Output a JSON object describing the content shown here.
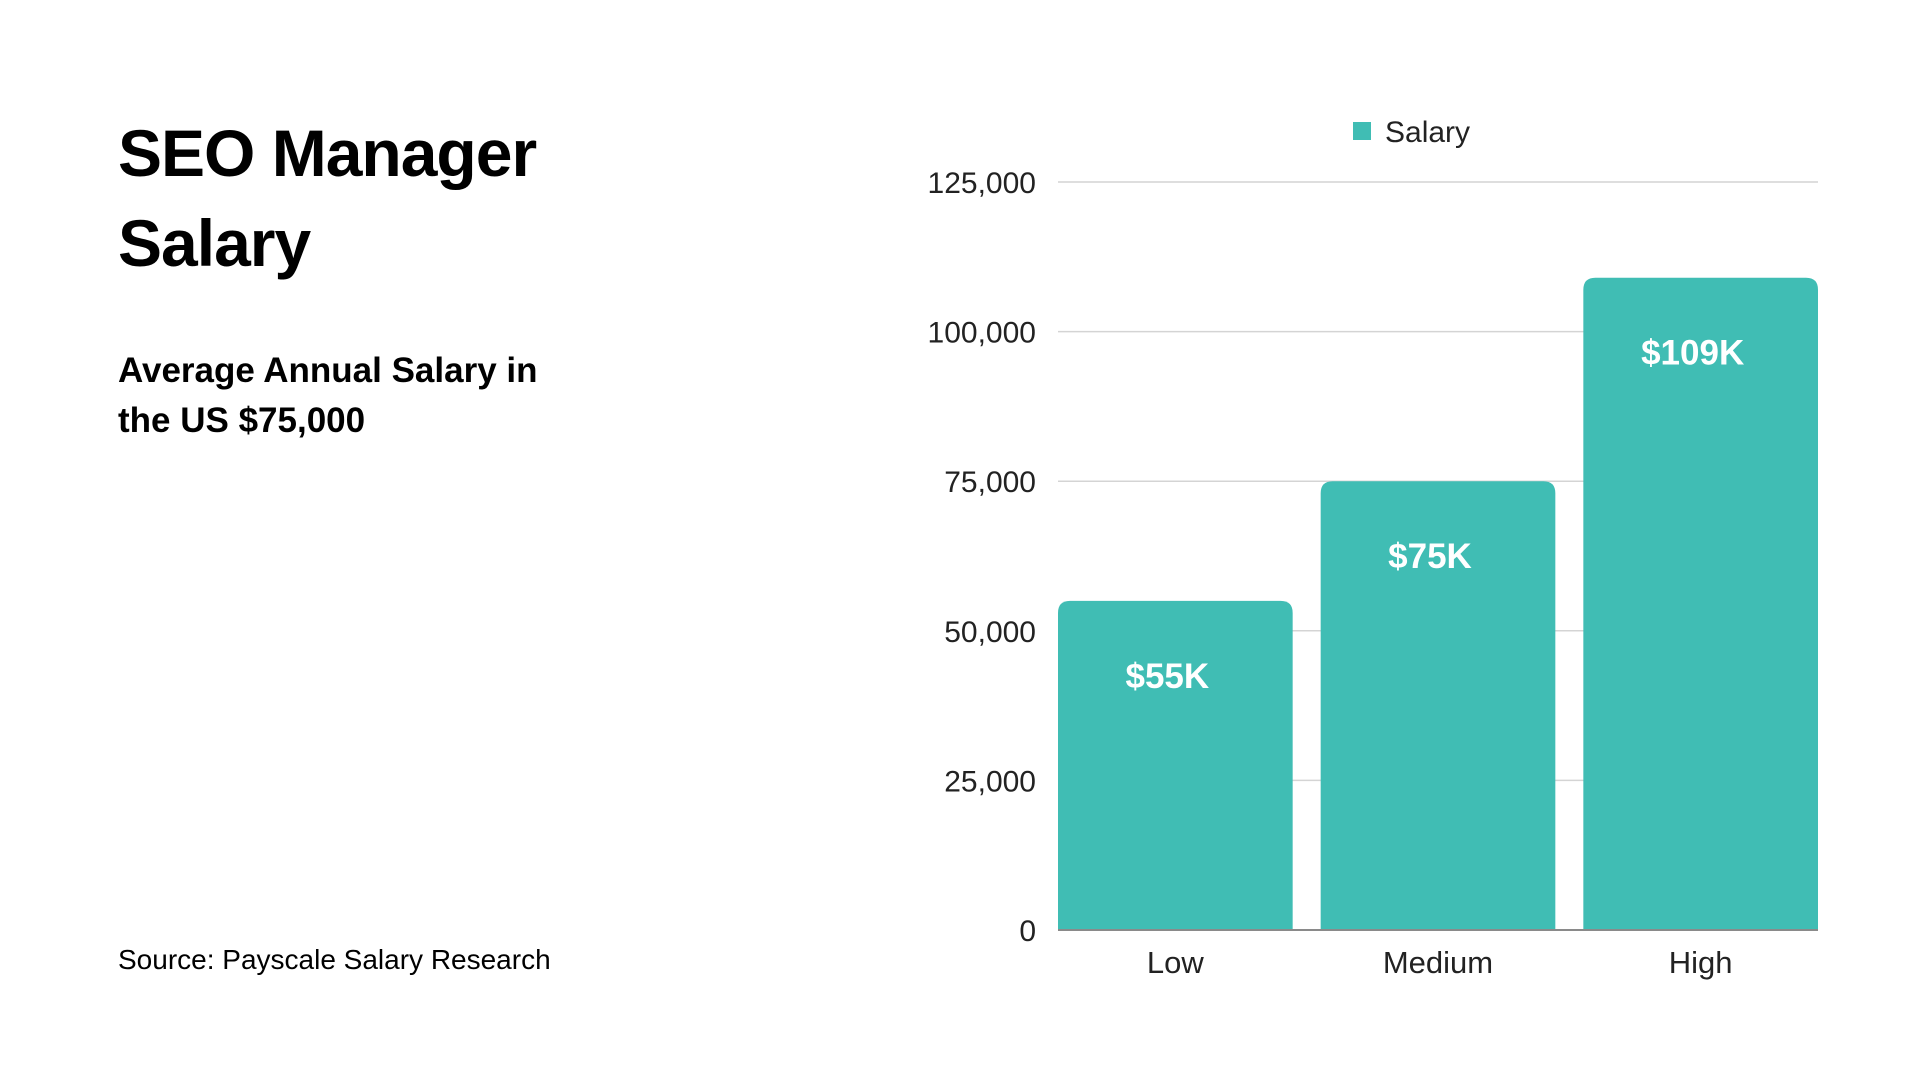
{
  "title": "SEO Manager Salary",
  "subtitle": "Average Annual Salary in the US $75,000",
  "source": "Source: Payscale Salary Research",
  "colors": {
    "bar": "#40bdb4",
    "grid": "#d4d4d4",
    "axis": "#8a8a8a"
  },
  "chart_data": {
    "type": "bar",
    "title": "",
    "xlabel": "",
    "ylabel": "",
    "categories": [
      "Low",
      "Medium",
      "High"
    ],
    "series": [
      {
        "name": "Salary",
        "values": [
          55000,
          75000,
          109000
        ],
        "labels": [
          "$55K",
          "$75K",
          "$109K"
        ]
      }
    ],
    "ylim": [
      0,
      125000
    ],
    "yticks": [
      0,
      25000,
      50000,
      75000,
      100000,
      125000
    ],
    "ytick_labels": [
      "0",
      "25,000",
      "50,000",
      "75,000",
      "100,000",
      "125,000"
    ],
    "grid": true,
    "legend": "top-center"
  }
}
